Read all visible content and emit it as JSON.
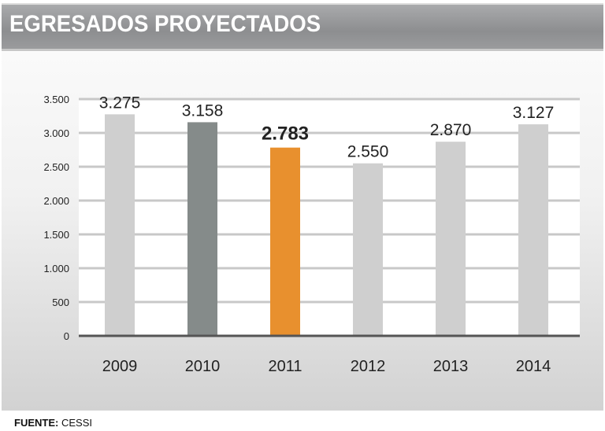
{
  "title": "EGRESADOS PROYECTADOS",
  "source_label": "FUENTE:",
  "source_value": "CESSI",
  "chart_data": {
    "type": "bar",
    "title": "EGRESADOS PROYECTADOS",
    "categories": [
      "2009",
      "2010",
      "2011",
      "2012",
      "2013",
      "2014"
    ],
    "values": [
      3275,
      3158,
      2783,
      2550,
      2870,
      3127
    ],
    "data_labels": [
      "3.275",
      "3.158",
      "2.783",
      "2.550",
      "2.870",
      "3.127"
    ],
    "highlight_index": 2,
    "colors": [
      "#cfcfcf",
      "#858b8a",
      "#e8902e",
      "#cfcfcf",
      "#cfcfcf",
      "#cfcfcf"
    ],
    "yticks": [
      0,
      500,
      1000,
      1500,
      2000,
      2500,
      3000,
      3500
    ],
    "ytick_labels": [
      "0",
      "500",
      "1.000",
      "1.500",
      "2.000",
      "2.500",
      "3.000",
      "3.500"
    ],
    "ylim": [
      0,
      3500
    ],
    "grid": true,
    "xlabel": "",
    "ylabel": ""
  }
}
